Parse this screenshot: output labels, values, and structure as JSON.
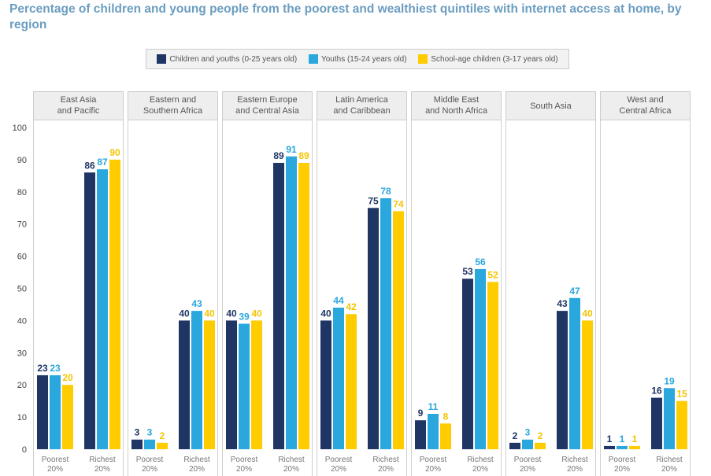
{
  "title": "Percentage of children and young people from the poorest and wealthiest quintiles with internet access at home, by region",
  "legend": [
    {
      "label": "Children and youths (0-25 years old)",
      "color": "#1f3564"
    },
    {
      "label": "Youths (15-24 years old)",
      "color": "#2aa7dd"
    },
    {
      "label": "School-age children (3-17 years old)",
      "color": "#ffcc00"
    }
  ],
  "chart_data": {
    "type": "bar",
    "ylim": [
      0,
      100
    ],
    "yticks": [
      "0",
      "10",
      "20",
      "30",
      "40",
      "50",
      "60",
      "70",
      "80",
      "90",
      "100"
    ],
    "groups": [
      "Poorest\n20%",
      "Richest\n20%"
    ],
    "series_colors": [
      "#1f3564",
      "#2aa7dd",
      "#ffcc00"
    ],
    "label_colors": [
      "#1f3564",
      "#2aa7dd",
      "#f5c400"
    ],
    "panels": [
      {
        "region": "East Asia\nand Pacific",
        "values": [
          [
            23,
            23,
            20
          ],
          [
            86,
            87,
            90
          ]
        ]
      },
      {
        "region": "Eastern and\nSouthern Africa",
        "values": [
          [
            3,
            3,
            2
          ],
          [
            40,
            43,
            40
          ]
        ]
      },
      {
        "region": "Eastern Europe\nand Central Asia",
        "values": [
          [
            40,
            39,
            40
          ],
          [
            89,
            91,
            89
          ]
        ]
      },
      {
        "region": "Latin America\nand Caribbean",
        "values": [
          [
            40,
            44,
            42
          ],
          [
            75,
            78,
            74
          ]
        ]
      },
      {
        "region": "Middle East\nand North Africa",
        "values": [
          [
            9,
            11,
            8
          ],
          [
            53,
            56,
            52
          ]
        ]
      },
      {
        "region": "South Asia",
        "values": [
          [
            2,
            3,
            2
          ],
          [
            43,
            47,
            40
          ]
        ]
      },
      {
        "region": "West and\nCentral Africa",
        "values": [
          [
            1,
            1,
            1
          ],
          [
            16,
            19,
            15
          ]
        ]
      }
    ]
  }
}
